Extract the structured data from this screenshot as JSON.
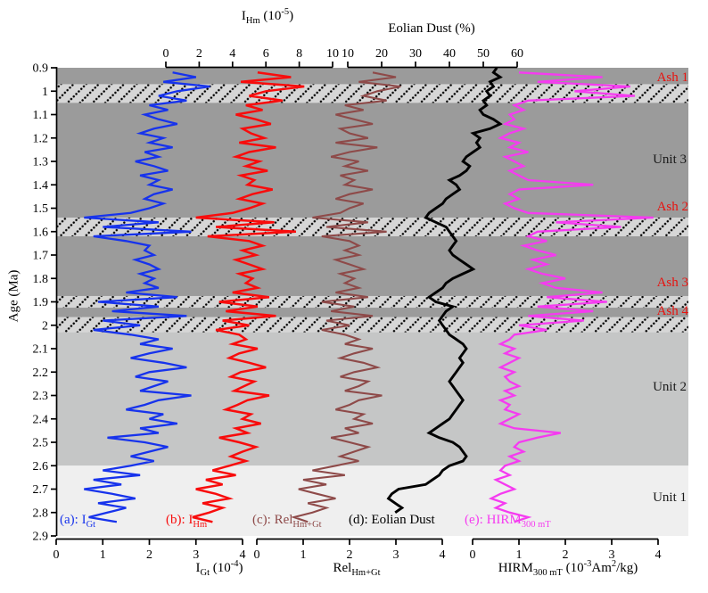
{
  "chart_data": {
    "type": "line",
    "orientation": "vertical_depth_series",
    "grid": false,
    "legend_position": "labels-inside-plot-bottom",
    "y_axis": {
      "label": "Age (Ma)",
      "range": [
        0.9,
        2.9
      ],
      "tick_step": 0.1,
      "tick_labels": [
        "0.9",
        "1",
        "1.1",
        "1.2",
        "1.3",
        "1.4",
        "1.5",
        "1.6",
        "1.7",
        "1.8",
        "1.9",
        "2",
        "2.1",
        "2.2",
        "2.3",
        "2.4",
        "2.5",
        "2.6",
        "2.7",
        "2.8",
        "2.9"
      ]
    },
    "x_axes": [
      {
        "id": "igt",
        "side": "bottom",
        "label": "I~Gt~ (10^-4^)",
        "range": [
          0,
          4
        ],
        "ticks": [
          "0",
          "1",
          "2",
          "3",
          "4"
        ]
      },
      {
        "id": "rel",
        "side": "bottom",
        "label": "Rel~Hm+Gt~",
        "range": [
          0,
          4
        ],
        "ticks": [
          "0",
          "1",
          "2",
          "3",
          "4"
        ]
      },
      {
        "id": "hirm",
        "side": "bottom",
        "label": "HIRM~300 mT~ (10^-3^Am^2^/kg)",
        "range": [
          0,
          4
        ],
        "ticks": [
          "0",
          "1",
          "2",
          "3",
          "4"
        ]
      },
      {
        "id": "ihm",
        "side": "top",
        "label": "I~Hm~ (10^-5^)",
        "range": [
          0,
          10
        ],
        "ticks": [
          "0",
          "2",
          "4",
          "6",
          "8",
          "10"
        ]
      },
      {
        "id": "dust",
        "side": "top",
        "label": "Eolian Dust (%)",
        "range": [
          10,
          60
        ],
        "ticks": [
          "10",
          "20",
          "30",
          "40",
          "50",
          "60"
        ]
      }
    ],
    "series": [
      {
        "id": "igt",
        "label": "(a): I~Gt~",
        "color": "#1733ec",
        "axis": "igt",
        "age_start": 0.92,
        "age_step": 0.02,
        "values": [
          2.5,
          3.0,
          2.3,
          3.3,
          2.6,
          2.2,
          2.8,
          2.0,
          2.4,
          1.9,
          2.2,
          2.6,
          2.1,
          1.8,
          2.3,
          2.0,
          2.5,
          1.9,
          2.2,
          1.7,
          2.1,
          2.4,
          1.8,
          2.2,
          2.0,
          2.5,
          2.1,
          1.9,
          2.3,
          2.0,
          1.6,
          0.6,
          2.2,
          1.0,
          2.9,
          0.8,
          1.5,
          2.0,
          1.9,
          2.1,
          1.7,
          2.0,
          2.2,
          1.8,
          2.1,
          1.9,
          2.2,
          1.5,
          2.6,
          0.9,
          2.2,
          1.2,
          2.8,
          1.0,
          1.8,
          0.8,
          1.6,
          2.2,
          1.8,
          2.5,
          2.0,
          1.6,
          2.3,
          2.8,
          2.0,
          1.7,
          2.4,
          2.1,
          1.8,
          2.9,
          2.2,
          1.9,
          1.5,
          2.3,
          2.0,
          2.6,
          1.8,
          2.2,
          1.1,
          1.9,
          2.4,
          2.0,
          1.6,
          2.1,
          1.6,
          1.0,
          1.8,
          0.8,
          1.4,
          0.6,
          1.2,
          1.7,
          0.9,
          1.5,
          1.1,
          0.7,
          1.3
        ]
      },
      {
        "id": "ihm",
        "label": "(b): I~Hm~",
        "color": "#f80c0c",
        "axis": "ihm",
        "age_start": 0.92,
        "age_step": 0.02,
        "values": [
          5.5,
          7.5,
          4.5,
          8.3,
          6.0,
          5.0,
          7.0,
          4.8,
          5.8,
          4.2,
          5.4,
          6.3,
          4.6,
          5.1,
          5.9,
          4.4,
          6.6,
          5.0,
          4.2,
          5.6,
          4.8,
          6.1,
          4.5,
          5.3,
          4.9,
          6.4,
          5.2,
          4.4,
          5.8,
          5.0,
          4.0,
          1.8,
          6.5,
          3.0,
          7.8,
          2.5,
          5.0,
          5.8,
          4.6,
          5.4,
          4.2,
          5.0,
          5.8,
          4.4,
          5.2,
          4.8,
          5.5,
          4.0,
          6.2,
          3.2,
          5.5,
          3.6,
          6.6,
          3.4,
          5.0,
          3.0,
          4.4,
          4.8,
          4.0,
          5.5,
          4.4,
          3.8,
          5.0,
          6.0,
          4.5,
          3.9,
          5.3,
          4.7,
          4.1,
          6.2,
          4.9,
          4.3,
          3.6,
          5.1,
          4.6,
          5.7,
          4.2,
          4.9,
          3.2,
          4.4,
          5.4,
          4.6,
          3.9,
          4.8,
          3.8,
          2.8,
          4.2,
          2.4,
          3.4,
          1.8,
          3.0,
          3.8,
          2.2,
          3.4,
          2.6,
          1.6,
          2.8
        ]
      },
      {
        "id": "rel",
        "label": "(c): Rel~Hm+Gt~",
        "color": "#8e4a49",
        "axis": "rel",
        "age_start": 0.92,
        "age_step": 0.02,
        "values": [
          2.5,
          3.0,
          2.2,
          3.1,
          2.6,
          2.3,
          2.8,
          1.9,
          2.3,
          1.7,
          2.1,
          2.5,
          1.8,
          2.0,
          2.4,
          1.7,
          2.6,
          2.0,
          1.6,
          2.2,
          1.9,
          2.4,
          1.8,
          2.1,
          1.9,
          2.5,
          2.0,
          1.7,
          2.3,
          2.0,
          1.8,
          1.2,
          2.4,
          1.5,
          2.8,
          1.4,
          2.0,
          2.2,
          1.9,
          2.2,
          1.7,
          2.0,
          2.3,
          1.8,
          2.1,
          1.9,
          2.2,
          1.7,
          2.4,
          1.4,
          2.1,
          1.6,
          2.5,
          1.5,
          2.0,
          1.4,
          1.9,
          2.2,
          1.9,
          2.5,
          2.1,
          1.8,
          2.3,
          2.6,
          2.1,
          1.8,
          2.4,
          2.2,
          1.9,
          2.7,
          2.2,
          2.0,
          1.7,
          2.3,
          2.1,
          2.5,
          1.9,
          2.2,
          1.6,
          2.0,
          2.4,
          2.1,
          1.8,
          2.2,
          1.7,
          1.2,
          1.9,
          1.0,
          1.5,
          0.9,
          1.3,
          1.7,
          1.1,
          1.5,
          1.2,
          0.8,
          1.1
        ]
      },
      {
        "id": "dust",
        "label": "(d): Eolian Dust",
        "color": "#000000",
        "axis": "dust",
        "age_start": 0.9,
        "age_step": 0.02,
        "values": [
          54,
          53,
          55,
          52,
          53,
          51,
          52,
          50,
          51,
          49,
          50,
          53,
          55,
          52,
          47,
          49,
          48,
          49,
          47,
          45,
          44,
          46,
          45,
          43,
          40,
          42,
          43,
          41,
          39,
          38,
          36,
          34,
          33,
          36,
          39,
          40,
          41,
          42,
          41,
          40,
          41,
          43,
          45,
          47,
          44,
          41,
          39,
          38,
          36,
          34,
          36,
          41,
          39,
          38,
          37,
          38,
          39,
          40,
          42,
          44,
          45,
          44,
          43,
          44,
          43,
          42,
          41,
          40,
          41,
          42,
          43,
          44,
          43,
          42,
          41,
          40,
          38,
          36,
          34,
          37,
          41,
          43,
          44,
          45,
          44,
          40,
          38,
          37,
          35,
          33,
          25,
          23,
          22,
          24,
          26,
          24
        ]
      },
      {
        "id": "hirm",
        "label": "(e): HIRM~300 mT~",
        "color": "#f53bf0",
        "axis": "hirm",
        "age_start": 0.92,
        "age_step": 0.02,
        "values": [
          1.0,
          2.8,
          1.4,
          3.4,
          2.2,
          3.5,
          1.2,
          0.9,
          1.1,
          0.8,
          0.9,
          0.7,
          1.1,
          0.8,
          0.6,
          1.0,
          0.8,
          1.2,
          0.7,
          0.9,
          1.1,
          0.8,
          1.0,
          1.2,
          2.6,
          1.0,
          0.8,
          1.0,
          0.7,
          0.9,
          1.2,
          3.9,
          1.8,
          3.2,
          1.4,
          1.2,
          1.6,
          1.1,
          1.4,
          1.8,
          1.3,
          1.6,
          1.2,
          1.5,
          2.0,
          1.5,
          1.8,
          2.8,
          1.6,
          2.9,
          1.4,
          2.6,
          1.2,
          2.4,
          1.0,
          1.6,
          0.9,
          0.8,
          0.6,
          0.9,
          0.7,
          1.0,
          0.8,
          0.6,
          0.9,
          0.7,
          0.8,
          1.0,
          0.7,
          0.9,
          0.6,
          0.8,
          0.7,
          1.0,
          0.8,
          0.6,
          0.9,
          1.9,
          1.4,
          1.0,
          0.9,
          1.1,
          0.8,
          1.0,
          0.7,
          0.6,
          0.8,
          0.5,
          0.7,
          0.9,
          0.6,
          0.4,
          0.7,
          0.5,
          0.8,
          1.2,
          0.9
        ]
      }
    ],
    "zones": {
      "units": [
        {
          "label": "Unit 3",
          "age_range": [
            0.9,
            2.03
          ],
          "color": "#9b9b9b",
          "label_age": 1.296
        },
        {
          "label": "Unit 2",
          "age_range": [
            2.03,
            2.6
          ],
          "color": "#c5c6c6",
          "label_age": 2.269
        },
        {
          "label": "Unit 1",
          "age_range": [
            2.6,
            2.9
          ],
          "color": "#efefef",
          "label_age": 2.741
        }
      ],
      "ash_layers": [
        {
          "label": "Ash 1",
          "age_range": [
            0.97,
            1.05
          ],
          "label_age": 0.946
        },
        {
          "label": "Ash 2",
          "age_range": [
            1.54,
            1.62
          ],
          "label_age": 1.498
        },
        {
          "label": "Ash 3",
          "age_range": [
            1.875,
            1.925
          ],
          "label_age": 1.822
        },
        {
          "label": "Ash 4",
          "age_range": [
            1.965,
            2.03
          ],
          "label_age": 1.944
        }
      ],
      "ash_band_color": "#d6d6d6",
      "ash_hatch_color": "#000000",
      "ash_label_color": "#e8120e"
    }
  }
}
